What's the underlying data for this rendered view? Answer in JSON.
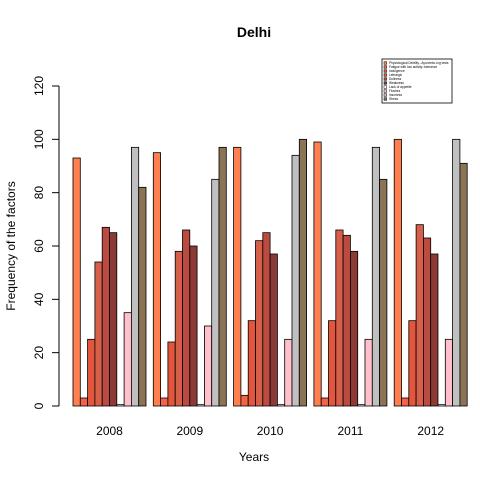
{
  "chart_data": {
    "type": "bar",
    "title": "Delhi",
    "xlabel": "Years",
    "ylabel": "Frequency of the factors",
    "categories": [
      "2008",
      "2009",
      "2010",
      "2011",
      "2012"
    ],
    "ylim": [
      0,
      120
    ],
    "yticks": [
      0,
      20,
      40,
      60,
      80,
      100,
      120
    ],
    "grid": false,
    "legend_position": "top-right",
    "series": [
      {
        "name": "Physiological Debility...Ayurveda..ing tests",
        "color": "#FF7F50",
        "values": [
          93,
          95,
          97,
          99,
          100
        ]
      },
      {
        "name": "Fatigue with low activity..tolerance",
        "color": "#F26445",
        "values": [
          3,
          3,
          4,
          3,
          3
        ]
      },
      {
        "name": "Indulgence",
        "color": "#E4553D",
        "values": [
          25,
          24,
          32,
          32,
          32
        ]
      },
      {
        "name": "Lethargic",
        "color": "#D65F4A",
        "values": [
          54,
          58,
          62,
          66,
          68
        ]
      },
      {
        "name": "Dullness",
        "color": "#BB4A40",
        "values": [
          67,
          66,
          65,
          64,
          63
        ]
      },
      {
        "name": "Weakness",
        "color": "#8C3A35",
        "values": [
          65,
          60,
          57,
          58,
          57
        ]
      },
      {
        "name": "Lack of appetite",
        "color": "#FFFFFF",
        "values": [
          0.5,
          0.5,
          0.5,
          0.5,
          0.5
        ]
      },
      {
        "name": "Flushes",
        "color": "#FFC0CB",
        "values": [
          35,
          30,
          25,
          25,
          25
        ]
      },
      {
        "name": "Insomnia",
        "color": "#C0C0C0",
        "values": [
          97,
          85,
          94,
          97,
          100
        ]
      },
      {
        "name": "Stress",
        "color": "#8B7355",
        "values": [
          82,
          97,
          100,
          85,
          91
        ]
      }
    ]
  }
}
